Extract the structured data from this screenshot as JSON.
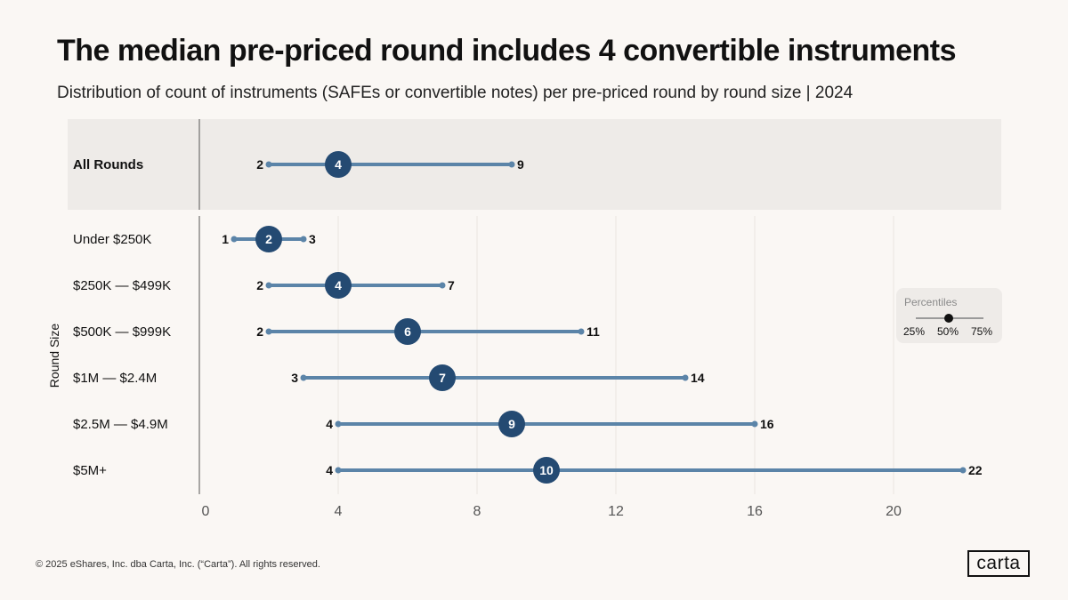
{
  "title": "The median pre-priced round includes 4 convertible instruments",
  "subtitle": "Distribution of count of instruments (SAFEs or convertible notes) per pre-priced round by round size | 2024",
  "footer": "© 2025 eShares, Inc. dba Carta, Inc. (“Carta”). All rights reserved.",
  "logo": "carta",
  "legend": {
    "title": "Percentiles",
    "labels": [
      "25%",
      "50%",
      "75%"
    ]
  },
  "colors": {
    "background": "#faf7f4",
    "highlight_band": "#eeebe8",
    "range_line": "#5b84a8",
    "median_dot": "#244a72",
    "text": "#111111"
  },
  "chart_data": {
    "type": "dot-range",
    "title": "The median pre-priced round includes 4 convertible instruments",
    "ylabel": "Round Size",
    "xlabel": "",
    "xlim": [
      0,
      22.5
    ],
    "xticks": [
      0,
      4,
      8,
      12,
      16,
      20
    ],
    "grid": true,
    "rows": [
      {
        "label": "All Rounds",
        "p25": 2,
        "p50": 4,
        "p75": 9,
        "highlight": true
      },
      {
        "label": "Under $250K",
        "p25": 1,
        "p50": 2,
        "p75": 3
      },
      {
        "label": "$250K — $499K",
        "p25": 2,
        "p50": 4,
        "p75": 7
      },
      {
        "label": "$500K — $999K",
        "p25": 2,
        "p50": 6,
        "p75": 11
      },
      {
        "label": "$1M — $2.4M",
        "p25": 3,
        "p50": 7,
        "p75": 14
      },
      {
        "label": "$2.5M — $4.9M",
        "p25": 4,
        "p50": 9,
        "p75": 16
      },
      {
        "label": "$5M+",
        "p25": 4,
        "p50": 10,
        "p75": 22
      }
    ]
  }
}
